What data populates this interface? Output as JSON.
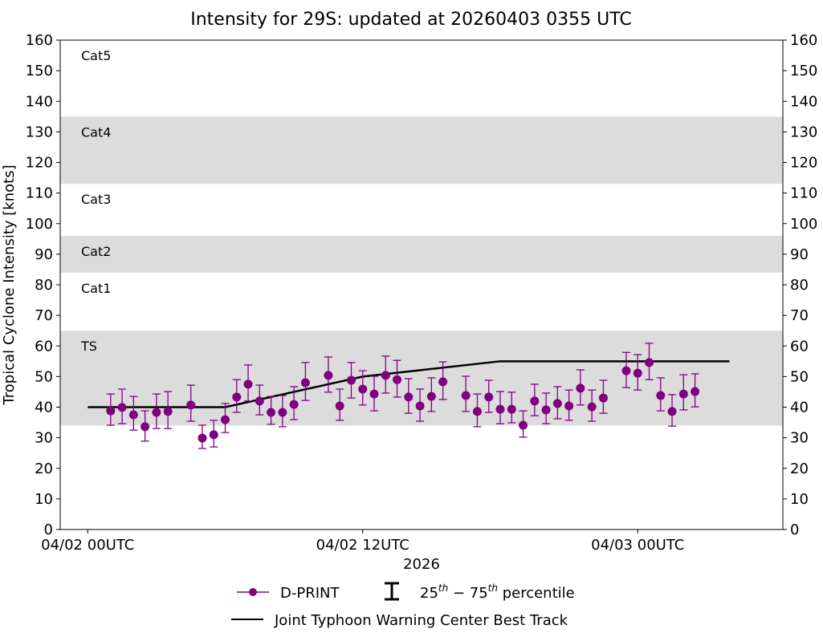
{
  "chart_data": {
    "type": "scatter",
    "title": "Intensity for 29S: updated at 20260403 0355 UTC",
    "xlabel": "2026",
    "ylabel": "Tropical Cyclone Intensity [knots]",
    "ylim": [
      0,
      160
    ],
    "yticks": [
      0,
      10,
      20,
      30,
      40,
      50,
      60,
      70,
      80,
      90,
      100,
      110,
      120,
      130,
      140,
      150,
      160
    ],
    "xlim": [
      "2026-04-01 22:48",
      "2026-04-03 06:20"
    ],
    "xticks": [
      {
        "x": "2026-04-02 00:00",
        "label": "04/02 00UTC"
      },
      {
        "x": "2026-04-02 12:00",
        "label": "04/02 12UTC"
      },
      {
        "x": "2026-04-03 00:00",
        "label": "04/03 00UTC"
      }
    ],
    "grid": false,
    "categories_bands": [
      {
        "label": "TS",
        "range": [
          34,
          65
        ],
        "shaded": true
      },
      {
        "label": "Cat1",
        "range": [
          65,
          84
        ],
        "shaded": false
      },
      {
        "label": "Cat2",
        "range": [
          84,
          96
        ],
        "shaded": true
      },
      {
        "label": "Cat3",
        "range": [
          96,
          113
        ],
        "shaded": false
      },
      {
        "label": "Cat4",
        "range": [
          113,
          135
        ],
        "shaded": true
      },
      {
        "label": "Cat5",
        "range": [
          135,
          160
        ],
        "shaded": false
      }
    ],
    "series": [
      {
        "name": "D-PRINT",
        "color": "#800080",
        "points": [
          {
            "x": "2026-04-02 01:00",
            "y": 38.8,
            "p25": 34.1,
            "p75": 44.3
          },
          {
            "x": "2026-04-02 01:30",
            "y": 39.9,
            "p25": 34.6,
            "p75": 45.9
          },
          {
            "x": "2026-04-02 02:00",
            "y": 37.5,
            "p25": 32.5,
            "p75": 43.5
          },
          {
            "x": "2026-04-02 02:30",
            "y": 33.6,
            "p25": 28.9,
            "p75": 38.8
          },
          {
            "x": "2026-04-02 03:00",
            "y": 38.3,
            "p25": 33.0,
            "p75": 44.3
          },
          {
            "x": "2026-04-02 03:30",
            "y": 38.6,
            "p25": 33.0,
            "p75": 45.1
          },
          {
            "x": "2026-04-02 04:30",
            "y": 40.7,
            "p25": 35.4,
            "p75": 47.2
          },
          {
            "x": "2026-04-02 05:00",
            "y": 29.9,
            "p25": 26.5,
            "p75": 34.1
          },
          {
            "x": "2026-04-02 05:30",
            "y": 31.0,
            "p25": 27.0,
            "p75": 35.7
          },
          {
            "x": "2026-04-02 06:00",
            "y": 35.9,
            "p25": 31.7,
            "p75": 41.2
          },
          {
            "x": "2026-04-02 06:30",
            "y": 43.3,
            "p25": 38.3,
            "p75": 49.0
          },
          {
            "x": "2026-04-02 07:00",
            "y": 47.5,
            "p25": 42.0,
            "p75": 53.8
          },
          {
            "x": "2026-04-02 07:30",
            "y": 42.0,
            "p25": 37.5,
            "p75": 47.2
          },
          {
            "x": "2026-04-02 08:00",
            "y": 38.3,
            "p25": 34.4,
            "p75": 43.5
          },
          {
            "x": "2026-04-02 08:30",
            "y": 38.3,
            "p25": 33.6,
            "p75": 43.8
          },
          {
            "x": "2026-04-02 09:00",
            "y": 40.9,
            "p25": 35.9,
            "p75": 46.7
          },
          {
            "x": "2026-04-02 09:30",
            "y": 48.0,
            "p25": 42.2,
            "p75": 54.6
          },
          {
            "x": "2026-04-02 10:30",
            "y": 50.4,
            "p25": 44.9,
            "p75": 56.4
          },
          {
            "x": "2026-04-02 11:00",
            "y": 40.4,
            "p25": 35.7,
            "p75": 45.9
          },
          {
            "x": "2026-04-02 11:30",
            "y": 48.8,
            "p25": 43.0,
            "p75": 54.6
          },
          {
            "x": "2026-04-02 12:00",
            "y": 45.9,
            "p25": 40.7,
            "p75": 51.9
          },
          {
            "x": "2026-04-02 12:30",
            "y": 44.3,
            "p25": 38.8,
            "p75": 50.1
          },
          {
            "x": "2026-04-02 13:00",
            "y": 50.4,
            "p25": 44.6,
            "p75": 56.7
          },
          {
            "x": "2026-04-02 13:30",
            "y": 49.0,
            "p25": 43.3,
            "p75": 55.3
          },
          {
            "x": "2026-04-02 14:00",
            "y": 43.3,
            "p25": 38.0,
            "p75": 49.3
          },
          {
            "x": "2026-04-02 14:30",
            "y": 40.4,
            "p25": 35.4,
            "p75": 45.9
          },
          {
            "x": "2026-04-02 15:00",
            "y": 43.5,
            "p25": 38.6,
            "p75": 49.6
          },
          {
            "x": "2026-04-02 15:30",
            "y": 48.3,
            "p25": 42.5,
            "p75": 54.8
          },
          {
            "x": "2026-04-02 16:30",
            "y": 43.8,
            "p25": 38.6,
            "p75": 50.1
          },
          {
            "x": "2026-04-02 17:00",
            "y": 38.6,
            "p25": 33.6,
            "p75": 44.3
          },
          {
            "x": "2026-04-02 17:30",
            "y": 43.3,
            "p25": 38.3,
            "p75": 48.8
          },
          {
            "x": "2026-04-02 18:00",
            "y": 39.3,
            "p25": 34.6,
            "p75": 45.1
          },
          {
            "x": "2026-04-02 18:30",
            "y": 39.3,
            "p25": 34.9,
            "p75": 44.9
          },
          {
            "x": "2026-04-02 19:00",
            "y": 34.1,
            "p25": 30.2,
            "p75": 38.8
          },
          {
            "x": "2026-04-02 19:30",
            "y": 42.0,
            "p25": 37.2,
            "p75": 47.5
          },
          {
            "x": "2026-04-02 20:00",
            "y": 39.1,
            "p25": 34.6,
            "p75": 44.6
          },
          {
            "x": "2026-04-02 20:30",
            "y": 41.2,
            "p25": 36.2,
            "p75": 46.7
          },
          {
            "x": "2026-04-02 21:00",
            "y": 40.4,
            "p25": 35.7,
            "p75": 45.6
          },
          {
            "x": "2026-04-02 21:30",
            "y": 46.2,
            "p25": 40.7,
            "p75": 52.2
          },
          {
            "x": "2026-04-02 22:00",
            "y": 40.1,
            "p25": 35.4,
            "p75": 45.6
          },
          {
            "x": "2026-04-02 22:30",
            "y": 43.0,
            "p25": 38.0,
            "p75": 48.8
          },
          {
            "x": "2026-04-02 23:30",
            "y": 51.9,
            "p25": 46.4,
            "p75": 57.9
          },
          {
            "x": "2026-04-03 00:00",
            "y": 51.1,
            "p25": 45.6,
            "p75": 57.2
          },
          {
            "x": "2026-04-03 00:30",
            "y": 54.6,
            "p25": 49.0,
            "p75": 60.9
          },
          {
            "x": "2026-04-03 01:00",
            "y": 43.8,
            "p25": 38.8,
            "p75": 49.6
          },
          {
            "x": "2026-04-03 01:30",
            "y": 38.6,
            "p25": 33.8,
            "p75": 44.1
          },
          {
            "x": "2026-04-03 02:00",
            "y": 44.3,
            "p25": 39.1,
            "p75": 50.6
          },
          {
            "x": "2026-04-03 02:30",
            "y": 45.1,
            "p25": 40.1,
            "p75": 50.9
          }
        ]
      },
      {
        "name": "Joint Typhoon Warning Center Best Track",
        "color": "#000000",
        "points": [
          {
            "x": "2026-04-02 00:00",
            "y": 40
          },
          {
            "x": "2026-04-02 06:00",
            "y": 40
          },
          {
            "x": "2026-04-02 12:00",
            "y": 50
          },
          {
            "x": "2026-04-02 18:00",
            "y": 55
          },
          {
            "x": "2026-04-03 04:00",
            "y": 55
          }
        ]
      }
    ],
    "legend": {
      "placement": "bottom",
      "dprint": "D-PRINT",
      "percentile_prefix": "25",
      "percentile_sup1": "th",
      "percentile_mid": " − 75",
      "percentile_sup2": "th",
      "percentile_suffix": " percentile",
      "best_track": "Joint Typhoon Warning Center Best Track"
    },
    "band_color": "#dcdcdc"
  }
}
